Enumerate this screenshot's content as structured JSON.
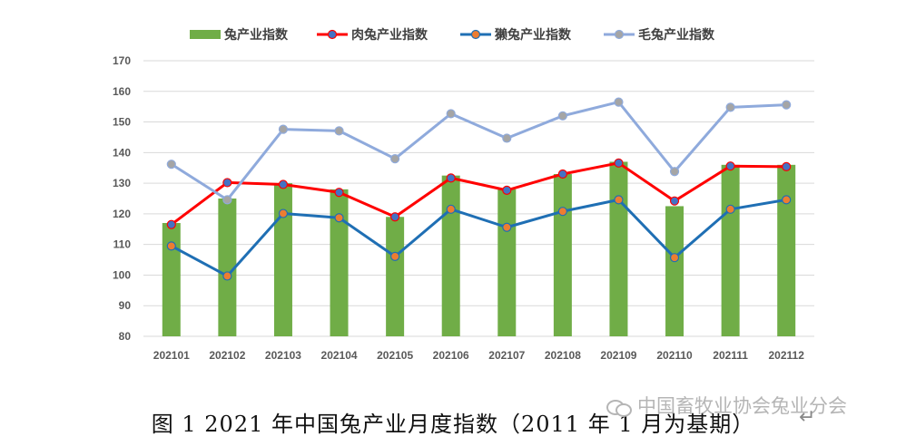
{
  "chart_data": {
    "type": "bar",
    "categories": [
      "202101",
      "202102",
      "202103",
      "202104",
      "202105",
      "202106",
      "202107",
      "202108",
      "202109",
      "202110",
      "202111",
      "202112"
    ],
    "ylim": [
      80,
      170
    ],
    "yticks": [
      80,
      90,
      100,
      110,
      120,
      130,
      140,
      150,
      160,
      170
    ],
    "grid": true,
    "legend_position": "top",
    "series": [
      {
        "name": "兔产业指数",
        "type": "bar",
        "color": "#70ad47",
        "values": [
          117,
          125,
          130,
          128,
          119,
          132.5,
          128,
          133,
          137,
          122.5,
          136,
          136
        ]
      },
      {
        "name": "肉兔产业指数",
        "type": "line",
        "color": "#ff0000",
        "marker_color": "#4472c4",
        "values": [
          116.5,
          130.2,
          129.6,
          127,
          119,
          131.7,
          127.7,
          133,
          136.6,
          124.2,
          135.6,
          135.4
        ]
      },
      {
        "name": "獭兔产业指数",
        "type": "line",
        "color": "#1f6fb4",
        "marker_color": "#ed7d31",
        "values": [
          109.5,
          99.7,
          120.1,
          118.7,
          106.1,
          121.5,
          115.6,
          120.8,
          124.6,
          105.7,
          121.5,
          124.6
        ]
      },
      {
        "name": "毛兔产业指数",
        "type": "line",
        "color": "#8faadc",
        "marker_color": "#a5a5a5",
        "values": [
          136.2,
          124.6,
          147.6,
          147.1,
          138,
          152.7,
          144.7,
          152,
          156.5,
          133.8,
          154.8,
          155.6
        ]
      }
    ]
  },
  "caption": "图 1   2021 年中国兔产业月度指数（2011 年 1 月为基期）",
  "watermark": "中国畜牧业协会兔业分会",
  "return_glyph": "↵"
}
